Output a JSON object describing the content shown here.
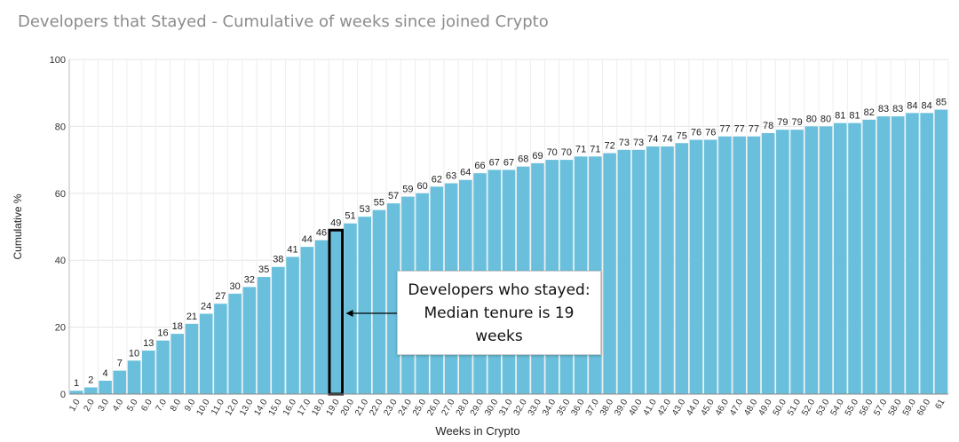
{
  "chart_data": {
    "type": "bar",
    "title": "Developers that Stayed - Cumulative of weeks since joined Crypto",
    "xlabel": "Weeks in Crypto",
    "ylabel": "Cumulative %",
    "ylim": [
      0,
      100
    ],
    "yticks": [
      0,
      20,
      40,
      60,
      80,
      100
    ],
    "grid": true,
    "bar_color": "#6ac0dc",
    "highlight_color": "#000000",
    "highlighted_category": "19.0",
    "categories": [
      "1.0",
      "2.0",
      "3.0",
      "4.0",
      "5.0",
      "6.0",
      "7.0",
      "8.0",
      "9.0",
      "10.0",
      "11.0",
      "12.0",
      "13.0",
      "14.0",
      "15.0",
      "16.0",
      "17.0",
      "18.0",
      "19.0",
      "20.0",
      "21.0",
      "22.0",
      "23.0",
      "24.0",
      "25.0",
      "26.0",
      "27.0",
      "28.0",
      "29.0",
      "30.0",
      "31.0",
      "32.0",
      "33.0",
      "34.0",
      "35.0",
      "36.0",
      "37.0",
      "38.0",
      "39.0",
      "40.0",
      "41.0",
      "42.0",
      "43.0",
      "44.0",
      "45.0",
      "46.0",
      "47.0",
      "48.0",
      "49.0",
      "50.0",
      "51.0",
      "52.0",
      "53.0",
      "54.0",
      "55.0",
      "56.0",
      "57.0",
      "58.0",
      "59.0",
      "60.0",
      "61"
    ],
    "values": [
      1,
      2,
      4,
      7,
      10,
      13,
      16,
      18,
      21,
      24,
      27,
      30,
      32,
      35,
      38,
      41,
      44,
      46,
      49,
      51,
      53,
      55,
      57,
      59,
      60,
      62,
      63,
      64,
      66,
      67,
      67,
      68,
      69,
      70,
      70,
      71,
      71,
      72,
      73,
      73,
      74,
      74,
      75,
      76,
      76,
      77,
      77,
      77,
      78,
      79,
      79,
      80,
      80,
      81,
      81,
      82,
      83,
      83,
      84,
      84,
      85
    ],
    "annotation": "Developers who stayed: Median tenure is 19 weeks"
  }
}
